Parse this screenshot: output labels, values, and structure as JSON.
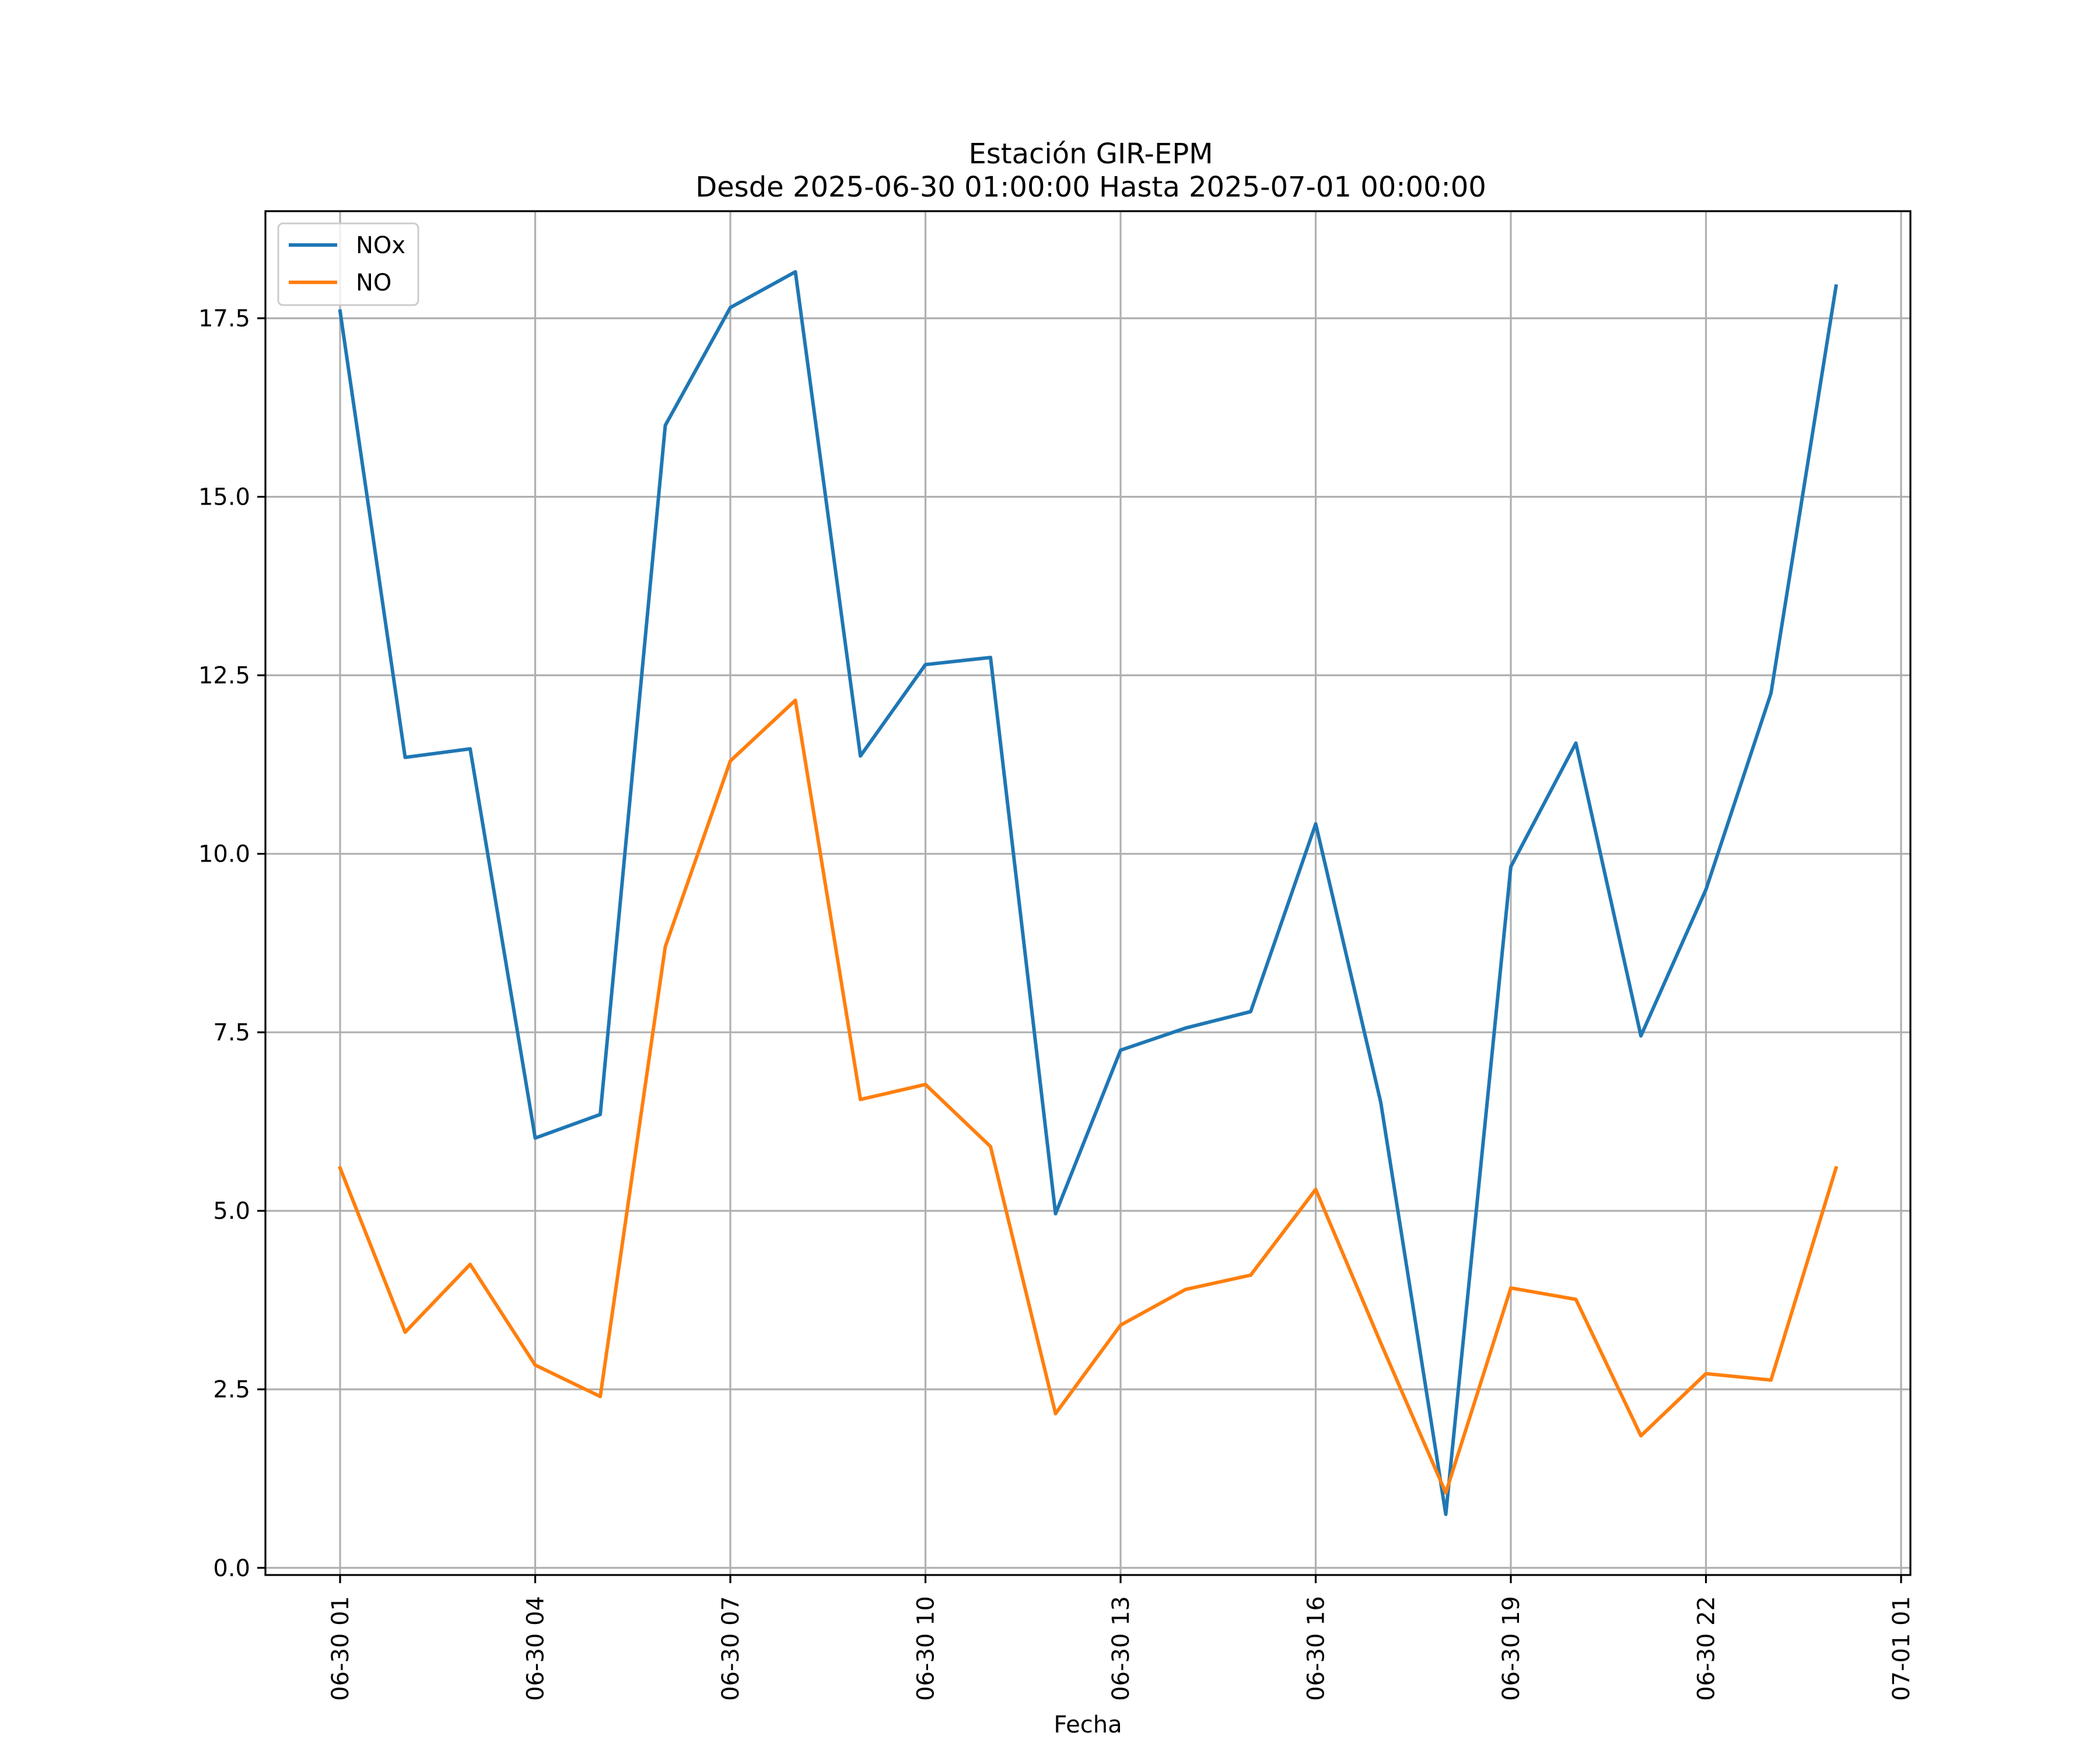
{
  "chart_data": {
    "type": "line",
    "title": "Estación GIR-EPM",
    "subtitle": "Desde 2025-06-30 01:00:00 Hasta 2025-07-01 00:00:00",
    "xlabel": "Fecha",
    "ylabel": "",
    "x": [
      "06-30 01",
      "06-30 02",
      "06-30 03",
      "06-30 04",
      "06-30 05",
      "06-30 06",
      "06-30 07",
      "06-30 08",
      "06-30 09",
      "06-30 10",
      "06-30 11",
      "06-30 12",
      "06-30 13",
      "06-30 14",
      "06-30 15",
      "06-30 16",
      "06-30 17",
      "06-30 18",
      "06-30 19",
      "06-30 20",
      "06-30 21",
      "06-30 22",
      "06-30 23",
      "07-01 00"
    ],
    "xticks": [
      "06-30 01",
      "06-30 04",
      "06-30 07",
      "06-30 10",
      "06-30 13",
      "06-30 16",
      "06-30 19",
      "06-30 22",
      "07-01 01"
    ],
    "xlim": [
      "06-30 00",
      "07-01 01"
    ],
    "ylim": [
      -0.1,
      19.0
    ],
    "yticks": [
      0.0,
      2.5,
      5.0,
      7.5,
      10.0,
      12.5,
      15.0,
      17.5
    ],
    "ytick_labels": [
      "0.0",
      "2.5",
      "5.0",
      "7.5",
      "10.0",
      "12.5",
      "15.0",
      "17.5"
    ],
    "grid": true,
    "legend_position": "top-left",
    "series": [
      {
        "name": "NOx",
        "color": "#1f77b4",
        "values": [
          17.6,
          11.35,
          11.47,
          6.02,
          6.35,
          16.0,
          17.65,
          18.15,
          11.37,
          12.65,
          12.75,
          4.96,
          7.25,
          7.56,
          7.79,
          10.42,
          6.52,
          0.75,
          9.82,
          11.55,
          7.45,
          9.5,
          12.25,
          17.95
        ]
      },
      {
        "name": "NO",
        "color": "#ff7f0e",
        "values": [
          5.6,
          3.3,
          4.25,
          2.84,
          2.4,
          8.7,
          11.3,
          12.15,
          6.56,
          6.77,
          5.9,
          2.16,
          3.4,
          3.9,
          4.1,
          5.3,
          3.15,
          1.05,
          3.92,
          3.76,
          1.85,
          2.72,
          2.63,
          5.6
        ]
      }
    ]
  }
}
